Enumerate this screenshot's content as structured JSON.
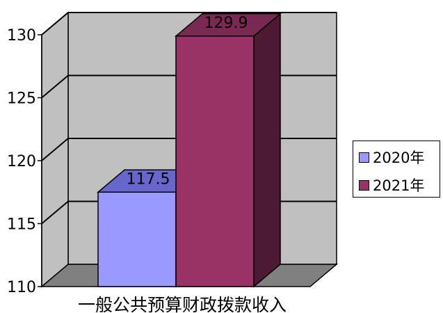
{
  "chart_data": {
    "type": "bar",
    "style": "3d",
    "categories": [
      "一般公共预算财政拨款收入"
    ],
    "series": [
      {
        "name": "2020年",
        "values": [
          117.5
        ],
        "color": "#9999ff"
      },
      {
        "name": "2021年",
        "values": [
          129.9
        ],
        "color": "#993366"
      }
    ],
    "data_labels": [
      "117.5",
      "129.9"
    ],
    "ylim": [
      110,
      130
    ],
    "yticks": [
      110,
      115,
      120,
      125,
      130
    ],
    "grid": true,
    "legend": "right"
  },
  "colors": {
    "wall": "#c0c0c0",
    "floor": "#808080",
    "series1_top": "#6666cc",
    "series2_top": "#7a2952",
    "series2_side": "#4d1a33"
  }
}
